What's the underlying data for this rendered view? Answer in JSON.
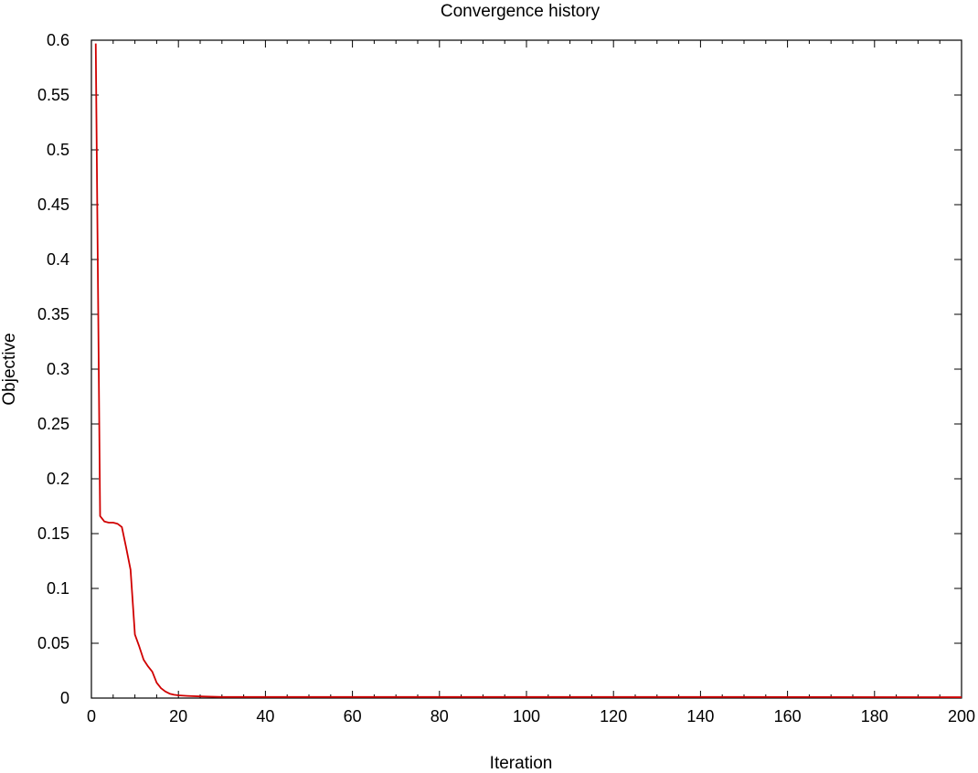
{
  "chart_data": {
    "type": "line",
    "title": "Convergence history",
    "xlabel": "Iteration",
    "ylabel": "Objective",
    "xlim": [
      0,
      200
    ],
    "ylim": [
      0,
      0.6
    ],
    "xticks": [
      0,
      20,
      40,
      60,
      80,
      100,
      120,
      140,
      160,
      180,
      200
    ],
    "yticks": [
      0,
      0.05,
      0.1,
      0.15,
      0.2,
      0.25,
      0.3,
      0.35,
      0.4,
      0.45,
      0.5,
      0.55,
      0.6
    ],
    "xtick_labels": [
      "0",
      "20",
      "40",
      "60",
      "80",
      "100",
      "120",
      "140",
      "160",
      "180",
      "200"
    ],
    "ytick_labels": [
      "0",
      "0.05",
      "0.1",
      "0.15",
      "0.2",
      "0.25",
      "0.3",
      "0.35",
      "0.4",
      "0.45",
      "0.5",
      "0.55",
      "0.6"
    ],
    "grid": false,
    "series": [
      {
        "color": "#d00000",
        "x": [
          1,
          2,
          3,
          4,
          5,
          6,
          7,
          8,
          9,
          10,
          11,
          12,
          13,
          14,
          15,
          16,
          17,
          18,
          19,
          20,
          22,
          25,
          30,
          40,
          60,
          100,
          150,
          200
        ],
        "y": [
          0.597,
          0.166,
          0.161,
          0.16,
          0.16,
          0.159,
          0.156,
          0.137,
          0.117,
          0.058,
          0.047,
          0.035,
          0.029,
          0.024,
          0.014,
          0.009,
          0.006,
          0.004,
          0.003,
          0.0025,
          0.002,
          0.0015,
          0.001,
          0.001,
          0.001,
          0.001,
          0.001,
          0.0008
        ]
      }
    ]
  }
}
